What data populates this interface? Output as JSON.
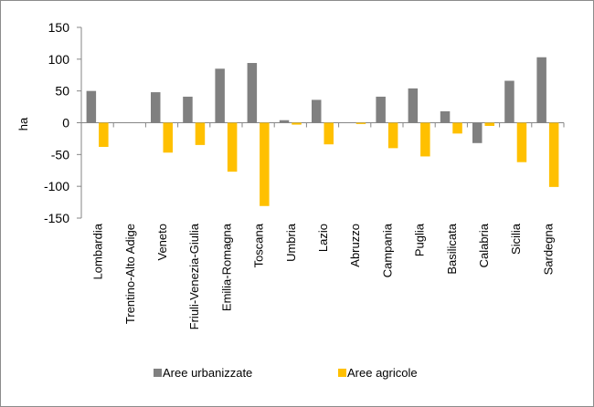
{
  "chart_data": {
    "type": "bar",
    "categories": [
      "Lombardia",
      "Trentino-Alto Adige",
      "Veneto",
      "Friuli-Venezia-Giulia",
      "Emilia-Romagna",
      "Toscana",
      "Umbria",
      "Lazio",
      "Abruzzo",
      "Campania",
      "Puglia",
      "Basilicata",
      "Calabria",
      "Sicilia",
      "Sardegna"
    ],
    "series": [
      {
        "name": "Aree urbanizzate",
        "color": "#808080",
        "values": [
          50,
          0,
          48,
          41,
          85,
          94,
          4,
          36,
          0,
          41,
          54,
          18,
          -32,
          66,
          103
        ]
      },
      {
        "name": "Aree agricole",
        "color": "#FFC000",
        "values": [
          -38,
          0,
          -47,
          -35,
          -77,
          -131,
          -3,
          -34,
          -2,
          -40,
          -53,
          -17,
          -5,
          -62,
          -101
        ]
      }
    ],
    "ylabel": "ha",
    "ylim": [
      -150,
      150
    ],
    "yticks": [
      150,
      100,
      50,
      0,
      -50,
      -100,
      -150
    ],
    "grid": false,
    "legend": "bottom"
  }
}
